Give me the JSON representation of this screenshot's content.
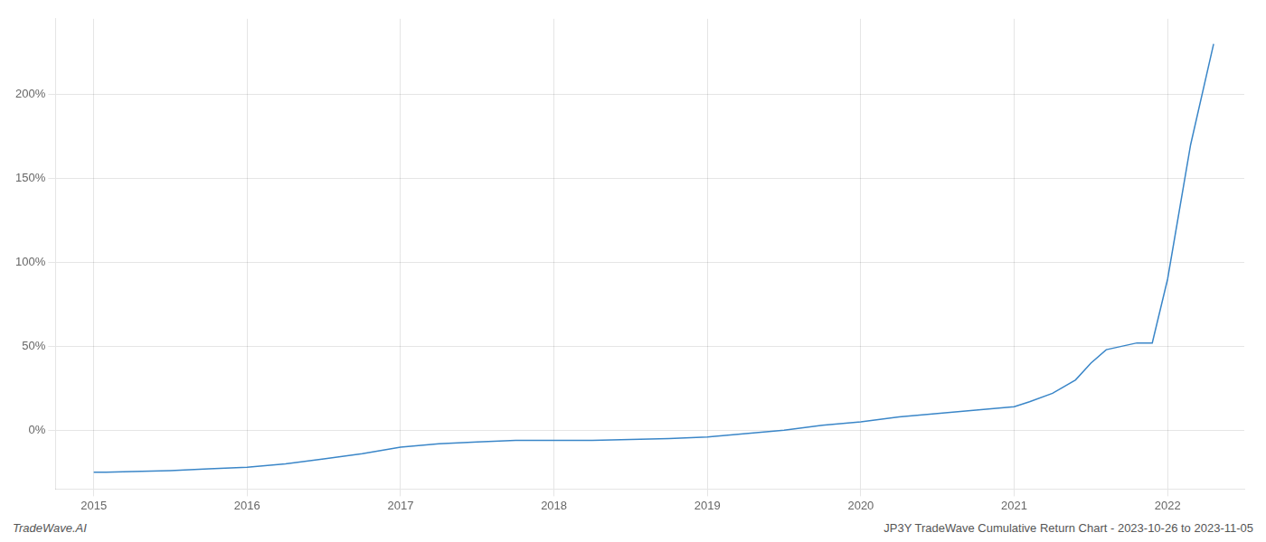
{
  "chart_data": {
    "type": "line",
    "annotations": [
      "TradeWave.AI",
      "JP3Y TradeWave Cumulative Return Chart - 2023-10-26 to 2023-11-05"
    ],
    "x": [
      2015.0,
      2015.08,
      2015.25,
      2015.5,
      2015.75,
      2016.0,
      2016.25,
      2016.5,
      2016.75,
      2017.0,
      2017.25,
      2017.5,
      2017.75,
      2018.0,
      2018.25,
      2018.5,
      2018.75,
      2019.0,
      2019.25,
      2019.5,
      2019.75,
      2020.0,
      2020.25,
      2020.5,
      2020.75,
      2021.0,
      2021.1,
      2021.25,
      2021.4,
      2021.5,
      2021.6,
      2021.7,
      2021.8,
      2021.9,
      2022.0,
      2022.15,
      2022.3
    ],
    "values": [
      -25,
      -25,
      -24.5,
      -24,
      -23,
      -22,
      -20,
      -17,
      -14,
      -10,
      -8,
      -7,
      -6,
      -6,
      -6,
      -5.5,
      -5,
      -4,
      -2,
      0,
      3,
      5,
      8,
      10,
      12,
      14,
      17,
      22,
      30,
      40,
      48,
      50,
      52,
      52,
      90,
      170,
      230
    ],
    "color": "#3a86c8",
    "xlim": [
      2014.75,
      2022.5
    ],
    "xticks": [
      2015,
      2016,
      2017,
      2018,
      2019,
      2020,
      2021,
      2022
    ],
    "ylim": [
      -35,
      245
    ],
    "yticks": [
      {
        "value": 0,
        "label": "0%"
      },
      {
        "value": 50,
        "label": "50%"
      },
      {
        "value": 100,
        "label": "100%"
      },
      {
        "value": 150,
        "label": "150%"
      },
      {
        "value": 200,
        "label": "200%"
      }
    ],
    "grid": true
  }
}
